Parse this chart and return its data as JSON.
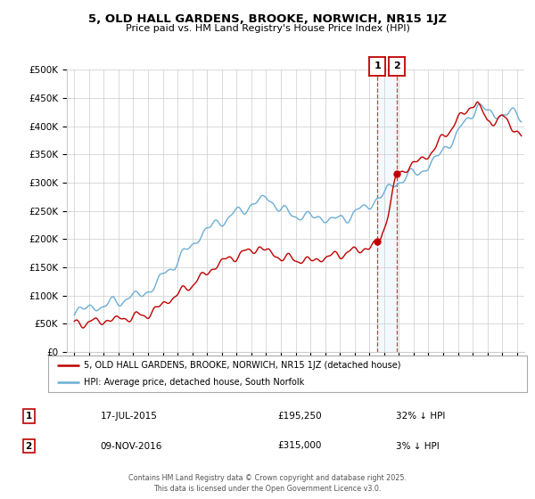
{
  "title": "5, OLD HALL GARDENS, BROOKE, NORWICH, NR15 1JZ",
  "subtitle": "Price paid vs. HM Land Registry's House Price Index (HPI)",
  "hpi_color": "#6baed6",
  "price_color": "#c00000",
  "vline1_x": 2015.54,
  "vline2_x": 2016.84,
  "dot1_y": 195250,
  "dot2_y": 315000,
  "ylim": [
    0,
    500000
  ],
  "xlim": [
    1994.5,
    2025.5
  ],
  "yticks": [
    0,
    50000,
    100000,
    150000,
    200000,
    250000,
    300000,
    350000,
    400000,
    450000,
    500000
  ],
  "ytick_labels": [
    "£0",
    "£50K",
    "£100K",
    "£150K",
    "£200K",
    "£250K",
    "£300K",
    "£350K",
    "£400K",
    "£450K",
    "£500K"
  ],
  "xticks": [
    1995,
    1996,
    1997,
    1998,
    1999,
    2000,
    2001,
    2002,
    2003,
    2004,
    2005,
    2006,
    2007,
    2008,
    2009,
    2010,
    2011,
    2012,
    2013,
    2014,
    2015,
    2016,
    2017,
    2018,
    2019,
    2020,
    2021,
    2022,
    2023,
    2024,
    2025
  ],
  "legend_label1": "5, OLD HALL GARDENS, BROOKE, NORWICH, NR15 1JZ (detached house)",
  "legend_label2": "HPI: Average price, detached house, South Norfolk",
  "note1_num": "1",
  "note1_date": "17-JUL-2015",
  "note1_price": "£195,250",
  "note1_hpi": "32% ↓ HPI",
  "note2_num": "2",
  "note2_date": "09-NOV-2016",
  "note2_price": "£315,000",
  "note2_hpi": "3% ↓ HPI",
  "footer_line1": "Contains HM Land Registry data © Crown copyright and database right 2025.",
  "footer_line2": "This data is licensed under the Open Government Licence v3.0.",
  "background_color": "#ffffff",
  "grid_color": "#cccccc",
  "span_color": "#aed4f0"
}
